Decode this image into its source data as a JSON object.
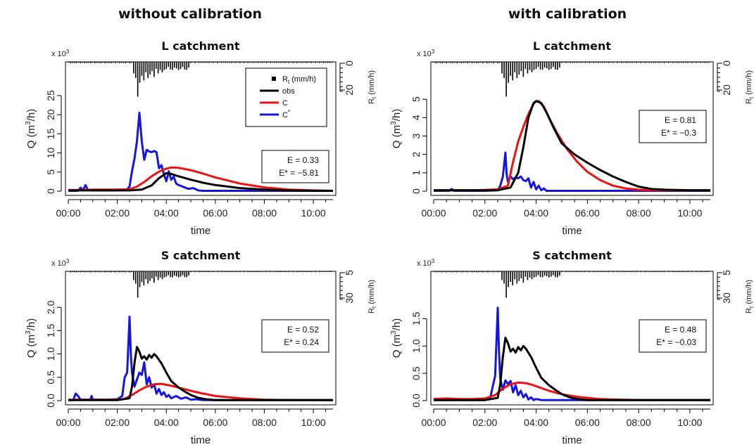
{
  "figure": {
    "column_titles": [
      "without calibration",
      "with calibration"
    ],
    "xlabel": "time",
    "x_tick_labels": [
      "00:00",
      "02:00",
      "04:00",
      "06:00",
      "08:00",
      "10:00"
    ],
    "ylabel_main": "Q (m",
    "ylabel_sup": "3",
    "ylabel_end": "/h)",
    "rain_label_main": "R",
    "rain_label_sub": "t",
    "rain_label_end": " (mm/h)",
    "multiplier_main": "x 10",
    "multiplier_sup": "3",
    "colors": {
      "obs": "#000000",
      "C": "#ee1111",
      "Cstar": "#1515e0",
      "rain": "#000000"
    },
    "legend": {
      "rain_main": "R",
      "rain_sub": "t",
      "rain_end": " (mm/h)",
      "obs": "obs",
      "C": "C",
      "Cstar_main": "C",
      "Cstar_sup": "*"
    }
  },
  "chart_data": [
    {
      "id": "p1",
      "type": "line",
      "title": "L catchment",
      "column": "without calibration",
      "xlabel": "time",
      "ylabel": "Q (m3/h)",
      "y_multiplier": "x 10^3",
      "xlim": [
        0,
        10.8
      ],
      "ylim": [
        0,
        25
      ],
      "yticks": [
        0,
        5,
        10,
        15,
        20,
        25
      ],
      "rain_axis_ticks": [
        0,
        20
      ],
      "rain_axis_label": "Rt (mm/h)",
      "stats": {
        "E": "E = 0.33",
        "Estar": "E* = −5.81"
      },
      "legend_visible": true,
      "series": [
        {
          "name": "obs",
          "x": [
            0,
            0.5,
            1,
            1.5,
            2,
            2.5,
            3,
            3.4,
            3.7,
            4.0,
            4.2,
            4.5,
            5.0,
            5.5,
            6,
            7,
            8,
            9,
            10,
            10.8
          ],
          "y": [
            0.2,
            0.2,
            0.2,
            0.2,
            0.2,
            0.2,
            0.4,
            1.5,
            3.4,
            4.7,
            4.5,
            3.9,
            3.0,
            2.2,
            1.6,
            0.8,
            0.4,
            0.2,
            0.1,
            0.1
          ]
        },
        {
          "name": "C",
          "x": [
            0,
            0.5,
            1,
            1.5,
            2,
            2.5,
            2.8,
            3.1,
            3.4,
            3.7,
            4.0,
            4.2,
            4.5,
            5.0,
            5.5,
            6,
            7,
            8,
            9,
            10,
            10.8
          ],
          "y": [
            0.3,
            0.3,
            0.4,
            0.4,
            0.4,
            0.5,
            1.2,
            2.4,
            3.9,
            5.1,
            5.9,
            6.2,
            6.1,
            5.5,
            4.6,
            3.6,
            2.0,
            1.0,
            0.4,
            0.2,
            0.1
          ]
        },
        {
          "name": "C*",
          "x": [
            0,
            0.4,
            0.5,
            0.6,
            0.7,
            0.8,
            1.0,
            1.5,
            2.0,
            2.4,
            2.5,
            2.6,
            2.7,
            2.8,
            2.9,
            3.0,
            3.1,
            3.2,
            3.3,
            3.4,
            3.5,
            3.6,
            3.7,
            3.8,
            3.9,
            4.0,
            4.1,
            4.2,
            4.3,
            4.4,
            4.5,
            4.7,
            4.9,
            5.1,
            5.3,
            5.5,
            6.0,
            7,
            8,
            9,
            10,
            10.8
          ],
          "y": [
            0.1,
            0.1,
            0.9,
            0.3,
            1.6,
            0.3,
            0.2,
            0.2,
            0.2,
            0.5,
            1.2,
            5.2,
            8.5,
            13.0,
            20.5,
            13.0,
            8.2,
            10.8,
            10.4,
            10.2,
            10.5,
            10.2,
            6.0,
            6.8,
            4.5,
            2.6,
            5.2,
            3.0,
            3.8,
            2.0,
            1.6,
            1.1,
            0.6,
            0.8,
            0.2,
            0.1,
            0.1,
            0.1,
            0.1,
            0.1,
            0.1,
            0.1
          ]
        }
      ]
    },
    {
      "id": "p2",
      "type": "line",
      "title": "L catchment",
      "column": "with calibration",
      "xlabel": "time",
      "ylabel": "Q (m3/h)",
      "y_multiplier": "x 10^3",
      "xlim": [
        0,
        10.8
      ],
      "ylim": [
        0,
        5.2
      ],
      "yticks": [
        0,
        1,
        2,
        3,
        4,
        5
      ],
      "rain_axis_ticks": [
        0,
        20
      ],
      "rain_axis_label": "Rt (mm/h)",
      "stats": {
        "E": "E = 0.81",
        "Estar": "E* = −0.3"
      },
      "legend_visible": false,
      "series": [
        {
          "name": "obs",
          "x": [
            0,
            0.5,
            1,
            1.5,
            2,
            2.5,
            3,
            3.3,
            3.5,
            3.7,
            3.9,
            4.0,
            4.2,
            4.4,
            4.7,
            5.0,
            5.5,
            6,
            6.5,
            7,
            7.5,
            8,
            8.5,
            9,
            10,
            10.8
          ],
          "y": [
            0.05,
            0.05,
            0.05,
            0.05,
            0.05,
            0.05,
            0.2,
            1.0,
            2.4,
            4.0,
            4.8,
            4.9,
            4.8,
            4.3,
            3.4,
            2.6,
            2.0,
            1.55,
            1.15,
            0.8,
            0.5,
            0.25,
            0.12,
            0.08,
            0.05,
            0.05
          ]
        },
        {
          "name": "C",
          "x": [
            0,
            0.5,
            1,
            1.5,
            2,
            2.5,
            2.9,
            3.1,
            3.3,
            3.5,
            3.7,
            3.9,
            4.0,
            4.1,
            4.3,
            4.5,
            4.8,
            5.2,
            5.6,
            6,
            6.5,
            7,
            7.5,
            8,
            8.5,
            9,
            10,
            10.8
          ],
          "y": [
            0.05,
            0.05,
            0.05,
            0.05,
            0.07,
            0.1,
            0.3,
            1.6,
            2.7,
            3.5,
            4.2,
            4.75,
            4.9,
            4.9,
            4.6,
            4.0,
            3.2,
            2.3,
            1.6,
            1.05,
            0.6,
            0.3,
            0.15,
            0.08,
            0.05,
            0.05,
            0.05,
            0.05
          ]
        },
        {
          "name": "C*",
          "x": [
            0,
            0.6,
            0.7,
            0.8,
            1.0,
            2.0,
            2.5,
            2.6,
            2.7,
            2.8,
            2.85,
            2.9,
            3.0,
            3.1,
            3.2,
            3.3,
            3.4,
            3.5,
            3.6,
            3.7,
            3.8,
            3.9,
            4.0,
            4.1,
            4.2,
            4.3,
            4.4,
            4.6,
            5,
            6,
            8,
            10,
            10.8
          ],
          "y": [
            0.02,
            0.02,
            0.12,
            0.02,
            0.02,
            0.02,
            0.05,
            0.3,
            0.8,
            2.1,
            0.9,
            0.5,
            0.8,
            0.65,
            0.75,
            0.7,
            0.8,
            0.6,
            0.55,
            0.7,
            0.2,
            0.5,
            0.1,
            0.3,
            0.05,
            0.15,
            0.02,
            0.02,
            0.02,
            0.02,
            0.02,
            0.02,
            0.02
          ]
        }
      ]
    },
    {
      "id": "p3",
      "type": "line",
      "title": "S catchment",
      "column": "without calibration",
      "xlabel": "time",
      "ylabel": "Q (m3/h)",
      "y_multiplier": "x 10^3",
      "xlim": [
        0,
        10.8
      ],
      "ylim": [
        0,
        2.05
      ],
      "yticks": [
        0,
        0.5,
        1.0,
        1.5,
        2.0
      ],
      "rain_axis_ticks": [
        5,
        30
      ],
      "rain_axis_label": "Rt (mm/h)",
      "stats": {
        "E": "E = 0.52",
        "Estar": "E* = 0.24"
      },
      "legend_visible": false,
      "series": [
        {
          "name": "obs",
          "x": [
            0,
            1,
            2,
            2.5,
            2.6,
            2.7,
            2.8,
            2.9,
            3.0,
            3.1,
            3.2,
            3.3,
            3.4,
            3.5,
            3.6,
            3.8,
            4.0,
            4.2,
            4.5,
            4.8,
            5.0,
            5.3,
            5.6,
            6.0,
            7,
            8,
            10,
            10.8
          ],
          "y": [
            0.01,
            0.01,
            0.01,
            0.05,
            0.3,
            0.8,
            1.15,
            1.05,
            0.9,
            0.95,
            0.88,
            0.98,
            0.92,
            1.0,
            0.95,
            0.8,
            0.6,
            0.42,
            0.28,
            0.18,
            0.12,
            0.06,
            0.03,
            0.01,
            0.01,
            0.01,
            0.01,
            0.01
          ]
        },
        {
          "name": "C",
          "x": [
            0,
            1,
            2,
            2.3,
            2.6,
            2.9,
            3.2,
            3.5,
            3.8,
            4.1,
            4.5,
            5.0,
            5.5,
            6,
            7,
            8,
            9,
            10,
            10.8
          ],
          "y": [
            0.02,
            0.02,
            0.02,
            0.04,
            0.12,
            0.22,
            0.3,
            0.35,
            0.36,
            0.33,
            0.28,
            0.21,
            0.15,
            0.1,
            0.05,
            0.02,
            0.01,
            0.01,
            0.01
          ]
        },
        {
          "name": "C*",
          "x": [
            0,
            0.2,
            0.3,
            0.4,
            0.5,
            0.9,
            0.95,
            1.0,
            1.5,
            2.0,
            2.2,
            2.3,
            2.4,
            2.5,
            2.55,
            2.6,
            2.7,
            2.8,
            2.9,
            3.0,
            3.1,
            3.2,
            3.3,
            3.4,
            3.5,
            3.6,
            3.7,
            3.8,
            3.9,
            4.0,
            4.1,
            4.2,
            4.4,
            4.6,
            4.8,
            5.0,
            5.2,
            5.5,
            6,
            8,
            10,
            10.8
          ],
          "y": [
            0.01,
            0.01,
            0.15,
            0.1,
            0.02,
            0.02,
            0.1,
            0.02,
            0.02,
            0.03,
            0.1,
            0.5,
            0.6,
            1.8,
            1.0,
            0.6,
            0.3,
            0.45,
            0.6,
            0.55,
            0.82,
            0.35,
            0.5,
            0.28,
            0.35,
            0.15,
            0.25,
            0.12,
            0.18,
            0.08,
            0.12,
            0.05,
            0.1,
            0.04,
            0.07,
            0.02,
            0.03,
            0.01,
            0.01,
            0.01,
            0.01,
            0.01
          ]
        }
      ]
    },
    {
      "id": "p4",
      "type": "line",
      "title": "S catchment",
      "column": "with calibration",
      "xlabel": "time",
      "ylabel": "Q (m3/h)",
      "y_multiplier": "x 10^3",
      "xlim": [
        0,
        10.8
      ],
      "ylim": [
        0,
        1.75
      ],
      "yticks": [
        0,
        0.5,
        1.0,
        1.5
      ],
      "rain_axis_ticks": [
        5,
        30
      ],
      "rain_axis_label": "Rt (mm/h)",
      "stats": {
        "E": "E = 0.48",
        "Estar": "E* = −0.03"
      },
      "legend_visible": false,
      "series": [
        {
          "name": "obs",
          "x": [
            0,
            1,
            2,
            2.5,
            2.6,
            2.7,
            2.8,
            2.9,
            3.0,
            3.1,
            3.2,
            3.3,
            3.4,
            3.5,
            3.6,
            3.8,
            4.0,
            4.2,
            4.5,
            4.8,
            5.0,
            5.3,
            5.6,
            6.0,
            7,
            8,
            10,
            10.8
          ],
          "y": [
            0.01,
            0.01,
            0.01,
            0.05,
            0.3,
            0.8,
            1.15,
            1.05,
            0.9,
            0.95,
            0.88,
            0.98,
            0.92,
            1.0,
            0.95,
            0.8,
            0.6,
            0.42,
            0.28,
            0.18,
            0.12,
            0.06,
            0.03,
            0.01,
            0.01,
            0.01,
            0.01,
            0.01
          ]
        },
        {
          "name": "C",
          "x": [
            0,
            0.5,
            1,
            1.5,
            2,
            2.4,
            2.7,
            3.0,
            3.3,
            3.6,
            3.9,
            4.2,
            4.5,
            4.8,
            5.2,
            5.6,
            6,
            6.5,
            7,
            8,
            9,
            10,
            10.8
          ],
          "y": [
            0.03,
            0.04,
            0.03,
            0.03,
            0.04,
            0.1,
            0.22,
            0.3,
            0.33,
            0.32,
            0.28,
            0.23,
            0.18,
            0.14,
            0.1,
            0.07,
            0.05,
            0.03,
            0.02,
            0.01,
            0.01,
            0.01,
            0.01
          ]
        },
        {
          "name": "C*",
          "x": [
            0,
            1,
            2,
            2.2,
            2.3,
            2.4,
            2.5,
            2.55,
            2.6,
            2.7,
            2.8,
            2.9,
            3.0,
            3.1,
            3.2,
            3.3,
            3.4,
            3.5,
            3.6,
            3.7,
            3.8,
            3.9,
            4.0,
            4.2,
            5,
            6,
            8,
            10,
            10.8
          ],
          "y": [
            0.01,
            0.01,
            0.01,
            0.03,
            0.25,
            0.45,
            1.7,
            0.9,
            0.4,
            0.2,
            0.37,
            0.3,
            0.36,
            0.15,
            0.28,
            0.1,
            0.18,
            0.06,
            0.12,
            0.02,
            0.06,
            0.01,
            0.03,
            0.01,
            0.01,
            0.01,
            0.01,
            0.01,
            0.01
          ]
        }
      ]
    }
  ]
}
